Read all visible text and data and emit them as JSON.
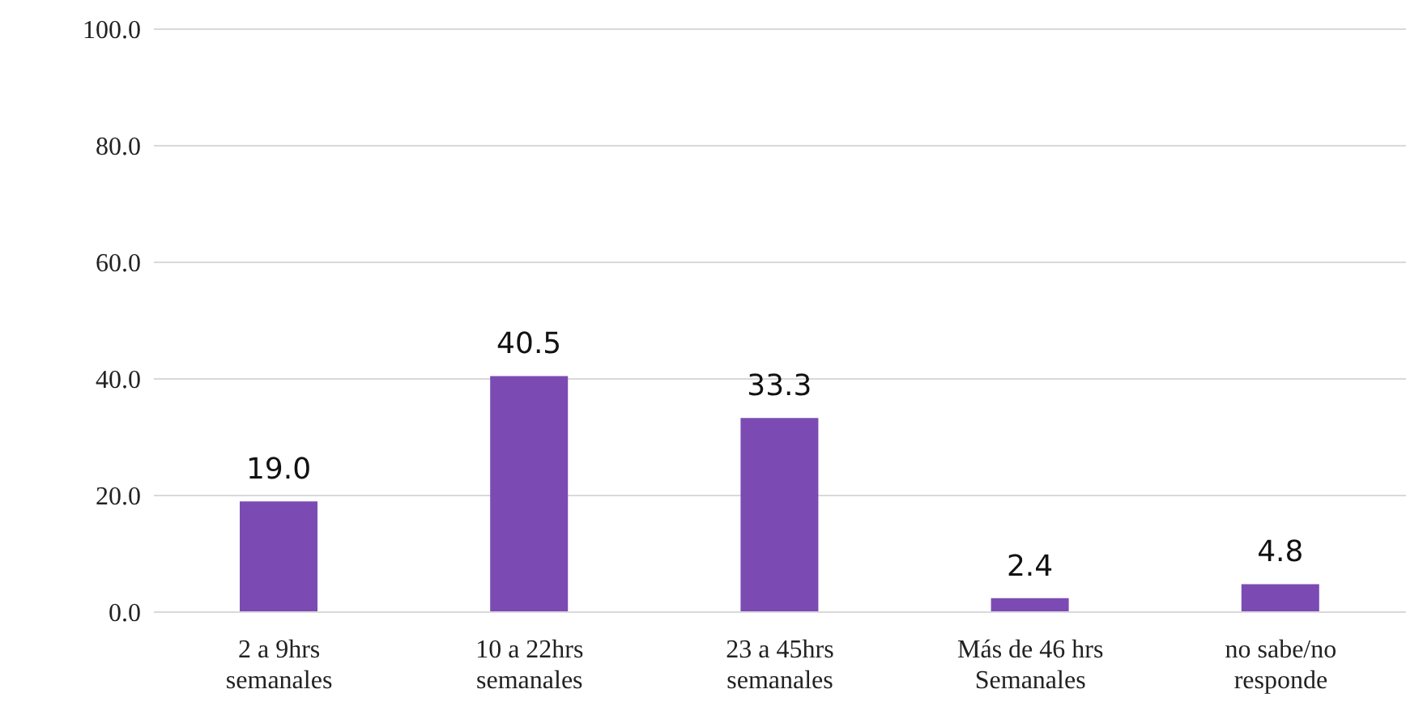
{
  "chart_data": {
    "type": "bar",
    "categories": [
      "2 a 9hrs semanales",
      "10 a 22hrs semanales",
      "23 a 45hrs semanales",
      "Más de 46 hrs Semanales",
      "no sabe/no responde"
    ],
    "values": [
      19.0,
      40.5,
      33.3,
      2.4,
      4.8
    ],
    "value_labels": [
      "19.0",
      "40.5",
      "33.3",
      "2.4",
      "4.8"
    ],
    "color": "#7b4bb3",
    "ylim": [
      0,
      100
    ],
    "yticks": [
      {
        "value": 0,
        "label": "0.0"
      },
      {
        "value": 20,
        "label": "20.0"
      },
      {
        "value": 40,
        "label": "40.0"
      },
      {
        "value": 60,
        "label": "60.0"
      },
      {
        "value": 80,
        "label": "80.0"
      },
      {
        "value": 100,
        "label": "100.0"
      }
    ],
    "grid": "y"
  }
}
